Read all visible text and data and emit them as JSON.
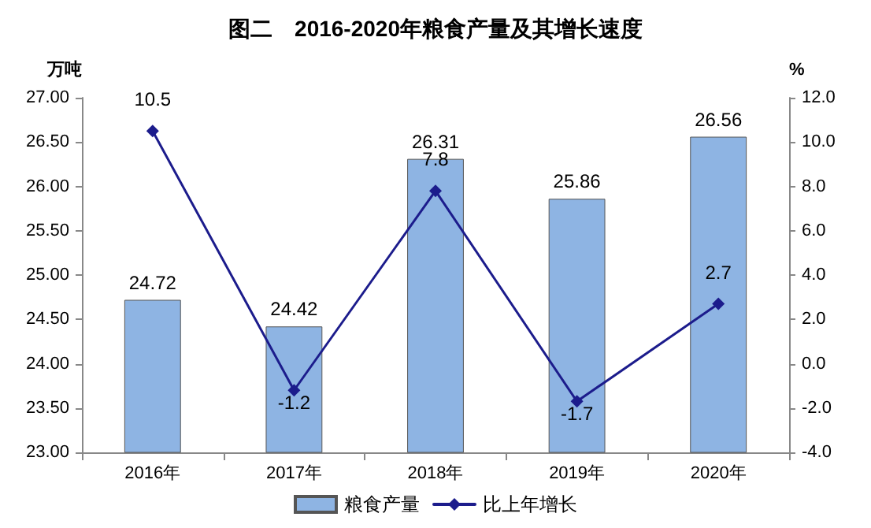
{
  "chart_data": {
    "type": "bar",
    "title": "图二　2016-2020年粮食产量及其增长速度",
    "ylabel": "万吨",
    "y2label": "%",
    "categories": [
      "2016年",
      "2017年",
      "2018年",
      "2019年",
      "2020年"
    ],
    "series": [
      {
        "name": "粮食产量",
        "color": "#8eb4e3",
        "values": [
          24.72,
          24.42,
          26.31,
          25.86,
          26.56
        ]
      },
      {
        "name": "比上年增长",
        "type": "line",
        "axis": "y2",
        "color": "#1c1c8c",
        "marker": "diamond",
        "values": [
          10.5,
          -1.2,
          7.8,
          -1.7,
          2.7
        ]
      }
    ],
    "ylim": [
      23,
      27
    ],
    "yticks": [
      {
        "value": 23,
        "label": "23.00"
      },
      {
        "value": 23.5,
        "label": "23.50"
      },
      {
        "value": 24,
        "label": "24.00"
      },
      {
        "value": 24.5,
        "label": "24.50"
      },
      {
        "value": 25,
        "label": "25.00"
      },
      {
        "value": 25.5,
        "label": "25.50"
      },
      {
        "value": 26,
        "label": "26.00"
      },
      {
        "value": 26.5,
        "label": "26.50"
      },
      {
        "value": 27,
        "label": "27.00"
      }
    ],
    "y2lim": [
      -4,
      12
    ],
    "y2ticks": [
      {
        "value": -4,
        "label": "-4.0"
      },
      {
        "value": -2,
        "label": "-2.0"
      },
      {
        "value": 0,
        "label": "0.0"
      },
      {
        "value": 2,
        "label": "2.0"
      },
      {
        "value": 4,
        "label": "4.0"
      },
      {
        "value": 6,
        "label": "6.0"
      },
      {
        "value": 8,
        "label": "8.0"
      },
      {
        "value": 10,
        "label": "10.0"
      },
      {
        "value": 12,
        "label": "12.0"
      }
    ],
    "data_labels": true,
    "grid": false,
    "legend": "bottom"
  }
}
